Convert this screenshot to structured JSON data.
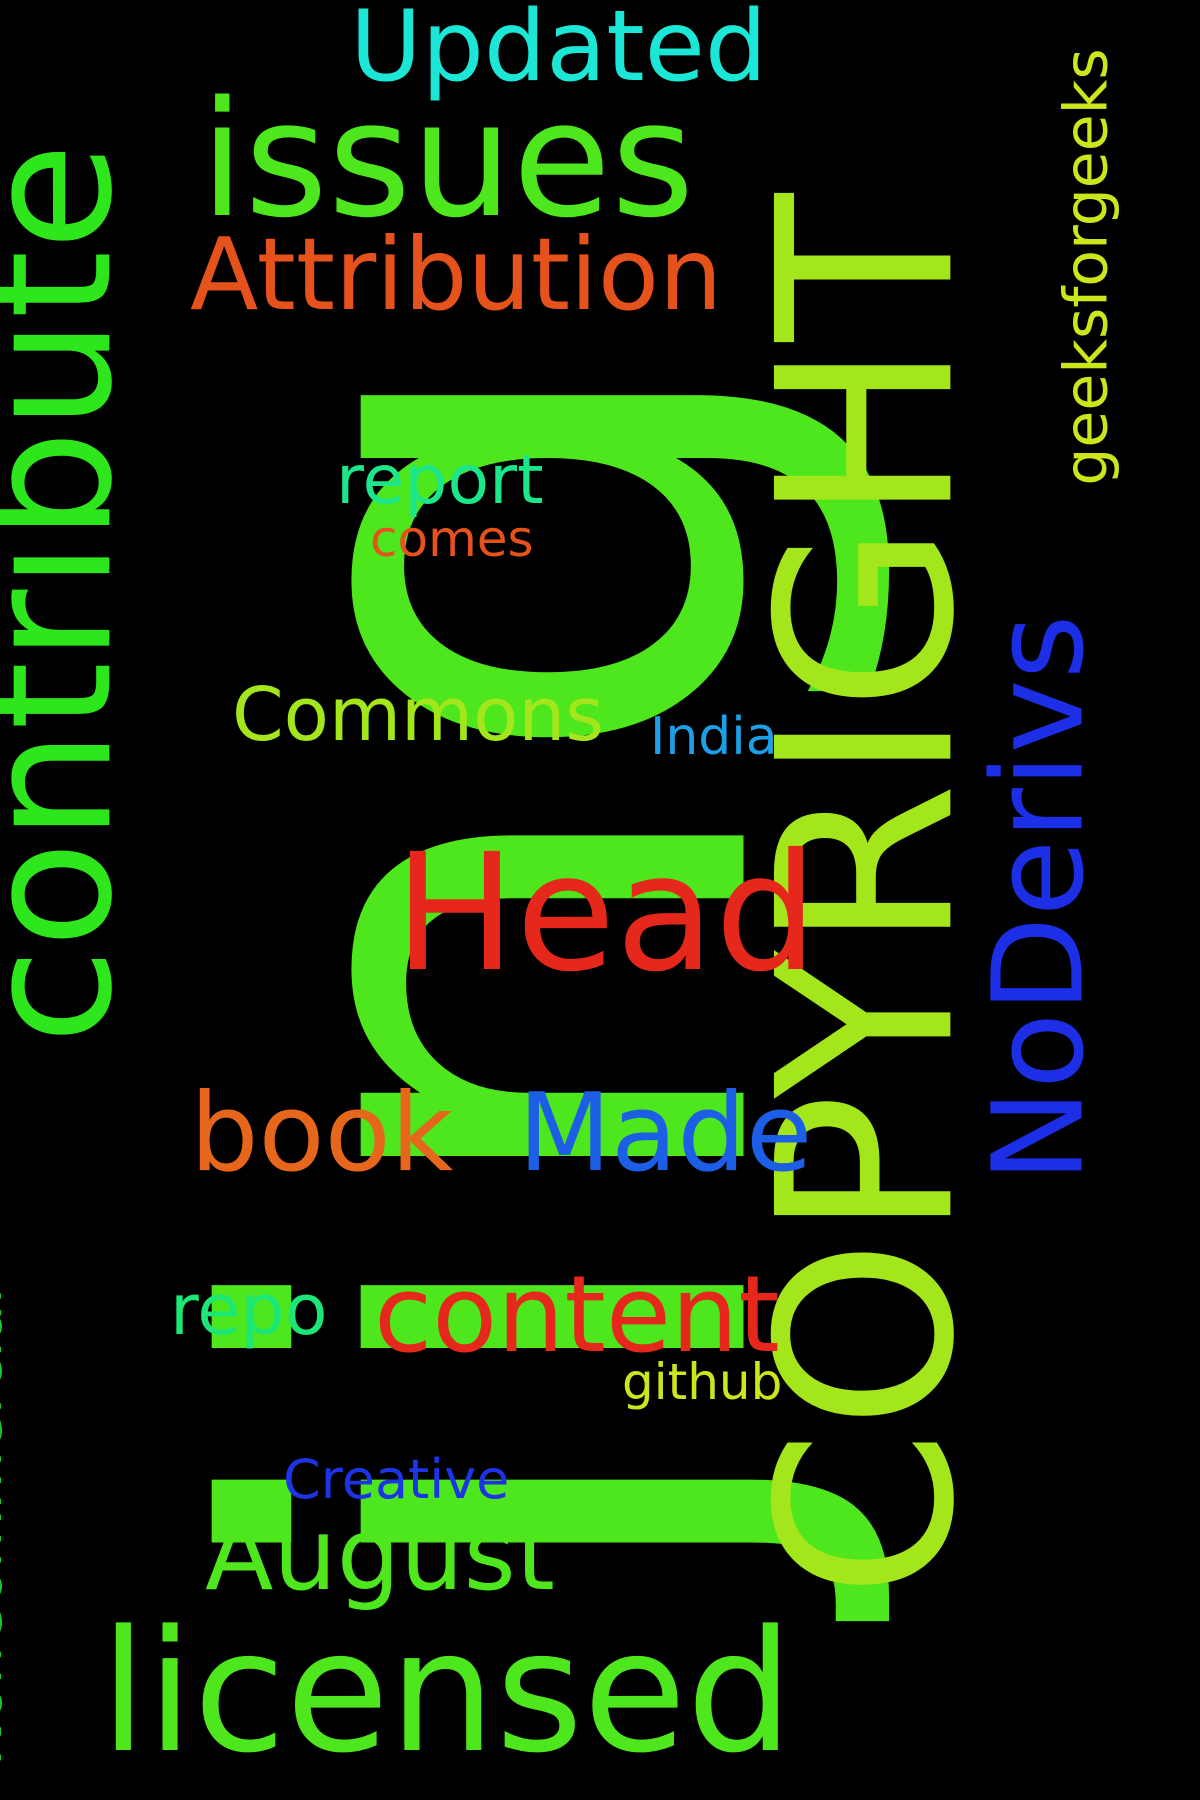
{
  "background_color": "#000000",
  "words": {
    "jing": {
      "text": "jing",
      "color": "#4ee61c",
      "orientation": "vertical"
    },
    "copyright": {
      "text": "COPYRIGHT",
      "color": "#a4e61c",
      "orientation": "vertical"
    },
    "contribute": {
      "text": "contribute",
      "color": "#2de61c",
      "orientation": "vertical"
    },
    "noderivs": {
      "text": "NoDerivs",
      "color": "#1c2ee6",
      "orientation": "vertical"
    },
    "noncommercial": {
      "text": "NonCommercial",
      "color": "#1cc929",
      "orientation": "vertical"
    },
    "geeksforgeeks": {
      "text": "geeksforgeeks",
      "color": "#cde61c",
      "orientation": "vertical"
    },
    "updated": {
      "text": "Updated",
      "color": "#1ce6d6",
      "orientation": "horizontal"
    },
    "issues": {
      "text": "issues",
      "color": "#4ee61c",
      "orientation": "horizontal"
    },
    "attribution": {
      "text": "Attribution",
      "color": "#e6521c",
      "orientation": "horizontal"
    },
    "report": {
      "text": "report",
      "color": "#1ce68a",
      "orientation": "horizontal"
    },
    "comes": {
      "text": "comes",
      "color": "#e6521c",
      "orientation": "horizontal"
    },
    "commons": {
      "text": "Commons",
      "color": "#a4e61c",
      "orientation": "horizontal"
    },
    "india": {
      "text": "India",
      "color": "#1c9fe6",
      "orientation": "horizontal"
    },
    "head": {
      "text": "Head",
      "color": "#e6281c",
      "orientation": "horizontal"
    },
    "book": {
      "text": "book",
      "color": "#e6661c",
      "orientation": "horizontal"
    },
    "made": {
      "text": "Made",
      "color": "#1c5ee6",
      "orientation": "horizontal"
    },
    "repo": {
      "text": "repo",
      "color": "#1ce676",
      "orientation": "horizontal"
    },
    "content": {
      "text": "content",
      "color": "#e6281c",
      "orientation": "horizontal"
    },
    "github": {
      "text": "github",
      "color": "#cde61c",
      "orientation": "horizontal"
    },
    "creative": {
      "text": "Creative",
      "color": "#1c34e6",
      "orientation": "horizontal"
    },
    "august": {
      "text": "August",
      "color": "#4ee61c",
      "orientation": "horizontal"
    },
    "licensed": {
      "text": "licensed",
      "color": "#4ee61c",
      "orientation": "horizontal"
    }
  }
}
